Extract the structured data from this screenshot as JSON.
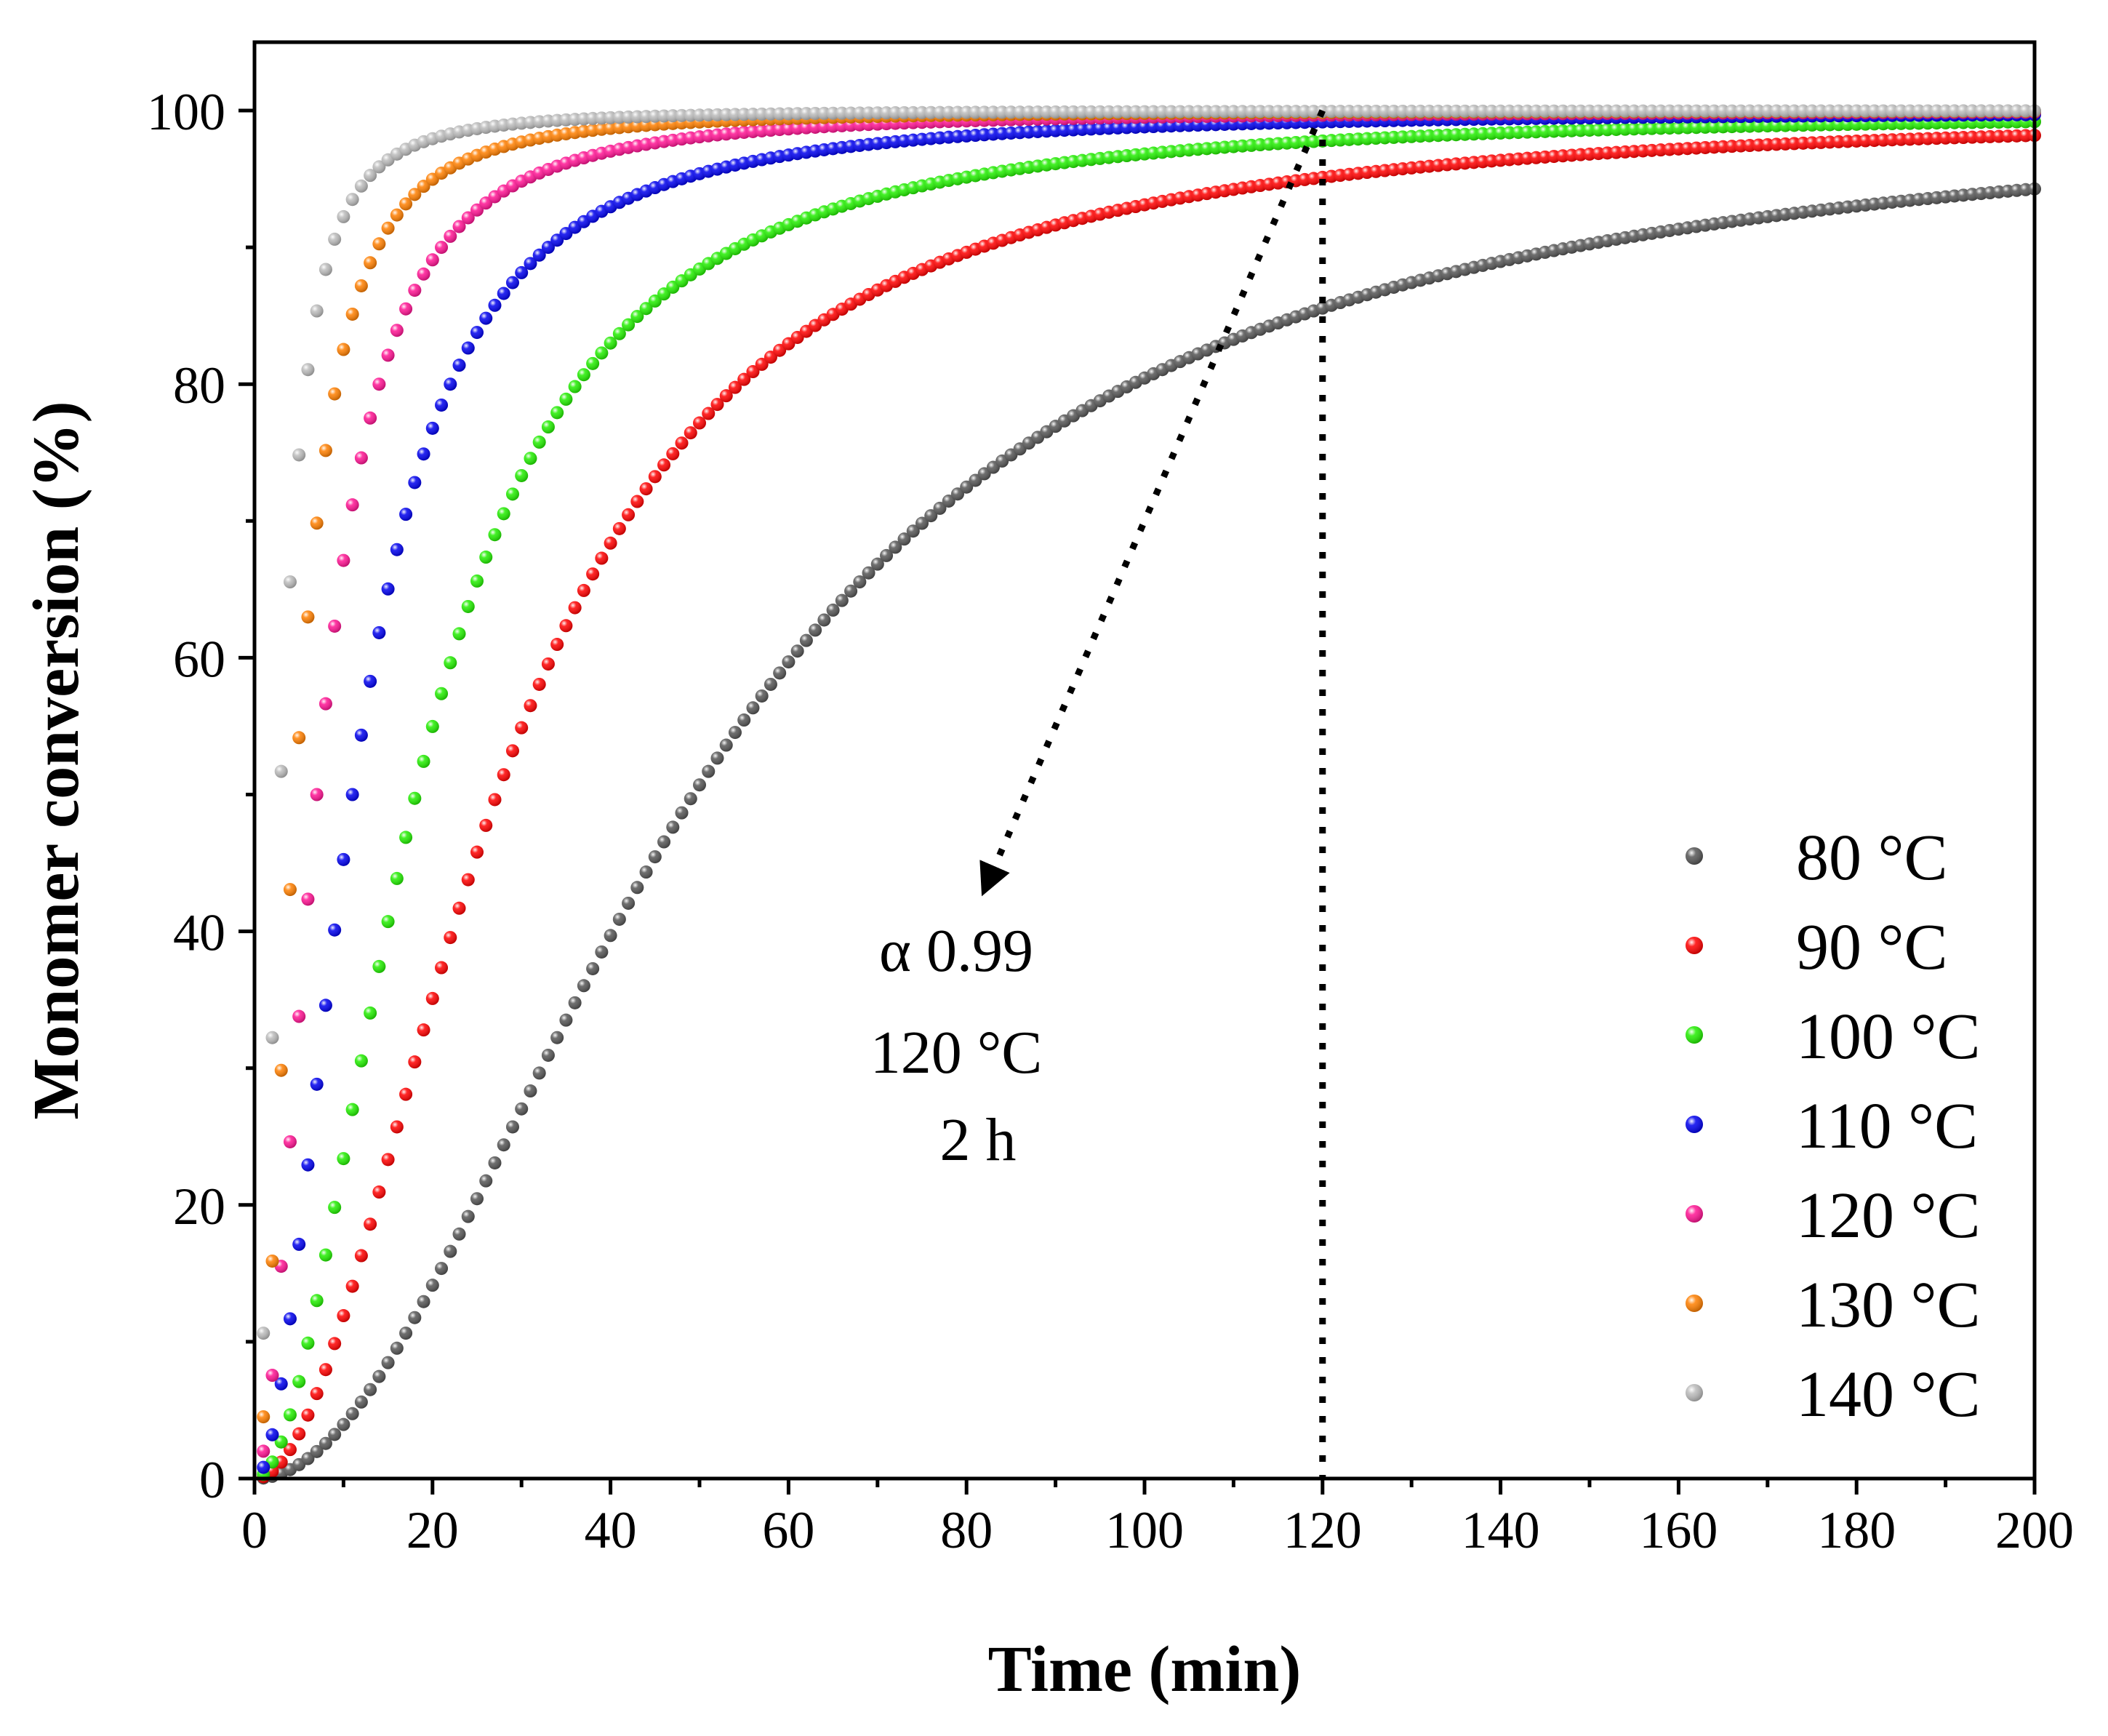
{
  "chart_data": {
    "type": "scatter",
    "xlabel": "Time (min)",
    "ylabel": "Monomer conversion (%)",
    "xlim": [
      0,
      200
    ],
    "ylim": [
      0,
      105
    ],
    "x_ticks": [
      0,
      20,
      40,
      60,
      80,
      100,
      120,
      140,
      160,
      180,
      200
    ],
    "y_ticks": [
      0,
      20,
      40,
      60,
      80,
      100
    ],
    "grid": false,
    "legend_position": "bottom-right",
    "series": [
      {
        "name": "80 °C",
        "color": "#555555",
        "t_half_min": 49.3,
        "x_start": 1,
        "x_end": 200,
        "step": 1.0
      },
      {
        "name": "90 °C",
        "color": "#ff0000",
        "t_half_min": 27.2,
        "x_start": 1,
        "x_end": 200,
        "step": 1.0
      },
      {
        "name": "100 °C",
        "color": "#22ee00",
        "t_half_min": 18.1,
        "x_start": 1,
        "x_end": 200,
        "step": 1.0
      },
      {
        "name": "110 °C",
        "color": "#0000ee",
        "t_half_min": 11.0,
        "x_start": 1,
        "x_end": 200,
        "step": 1.0
      },
      {
        "name": "120 °C",
        "color": "#ff1493",
        "t_half_min": 7.0,
        "x_start": 1,
        "x_end": 200,
        "step": 1.0
      },
      {
        "name": "130 °C",
        "color": "#ff7f00",
        "t_half_min": 4.6,
        "x_start": 1,
        "x_end": 200,
        "step": 1.0
      },
      {
        "name": "140 °C",
        "color": "#bbbbbb",
        "t_half_min": 2.9,
        "x_start": 1,
        "x_end": 200,
        "step": 1.0
      }
    ],
    "annotation": {
      "lines": [
        "α 0.99",
        "120 °C",
        "2 h"
      ],
      "marker_x": 120,
      "arrow_from": [
        120,
        100
      ],
      "arrow_to": [
        82,
        43
      ]
    }
  }
}
